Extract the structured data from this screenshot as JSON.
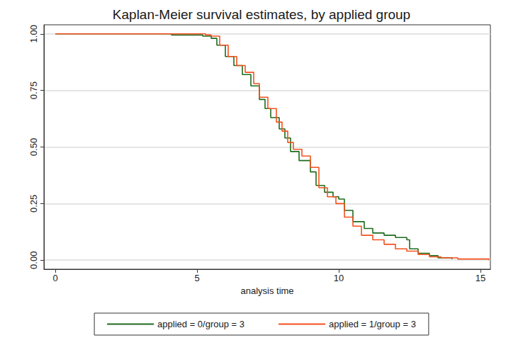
{
  "chart_data": {
    "type": "line",
    "title": "Kaplan-Meier survival estimates, by applied group",
    "x_label": "analysis time",
    "xlim": [
      -0.4,
      15.35
    ],
    "xticks": [
      0,
      5,
      10,
      15
    ],
    "ylim": [
      -0.04,
      1.04
    ],
    "yticks": [
      {
        "value": 0,
        "label": "0.00"
      },
      {
        "value": 0.25,
        "label": "0.25"
      },
      {
        "value": 0.5,
        "label": "0.50"
      },
      {
        "value": 0.75,
        "label": "0.75"
      },
      {
        "value": 1,
        "label": "1.00"
      }
    ],
    "grid": true,
    "legend": "bottom",
    "line_style": "step",
    "series": [
      {
        "name": "applied = 0/group = 3",
        "color": "#1e6b1e",
        "x": [
          0,
          4.1,
          5.2,
          5.5,
          5.7,
          6.0,
          6.3,
          6.6,
          6.9,
          7.2,
          7.4,
          7.6,
          7.9,
          8.1,
          8.3,
          8.6,
          9.0,
          9.2,
          9.5,
          9.8,
          10.0,
          10.2,
          10.5,
          10.9,
          11.2,
          11.6,
          12.0,
          12.4,
          12.5,
          12.8,
          13.2,
          13.5,
          14.0
        ],
        "values": [
          1,
          0.995,
          0.99,
          0.98,
          0.95,
          0.9,
          0.86,
          0.82,
          0.77,
          0.71,
          0.67,
          0.63,
          0.58,
          0.54,
          0.48,
          0.44,
          0.39,
          0.33,
          0.3,
          0.28,
          0.27,
          0.22,
          0.17,
          0.14,
          0.12,
          0.11,
          0.1,
          0.09,
          0.05,
          0.03,
          0.02,
          0.01,
          0.005
        ]
      },
      {
        "name": "applied = 1/group = 3",
        "color": "#f4511e",
        "x": [
          0,
          5.3,
          5.5,
          5.8,
          6.1,
          6.4,
          6.7,
          7.0,
          7.2,
          7.5,
          7.8,
          8.0,
          8.2,
          8.4,
          8.7,
          9.0,
          9.3,
          9.6,
          9.9,
          10.2,
          10.5,
          10.8,
          11.2,
          11.6,
          12.0,
          12.4,
          12.8,
          13.2,
          13.6,
          14.2,
          15.3
        ],
        "values": [
          1,
          0.995,
          0.99,
          0.95,
          0.9,
          0.86,
          0.83,
          0.78,
          0.72,
          0.67,
          0.61,
          0.57,
          0.52,
          0.49,
          0.46,
          0.41,
          0.32,
          0.28,
          0.25,
          0.19,
          0.15,
          0.11,
          0.09,
          0.07,
          0.05,
          0.04,
          0.025,
          0.015,
          0.01,
          0.005,
          0
        ]
      }
    ]
  }
}
